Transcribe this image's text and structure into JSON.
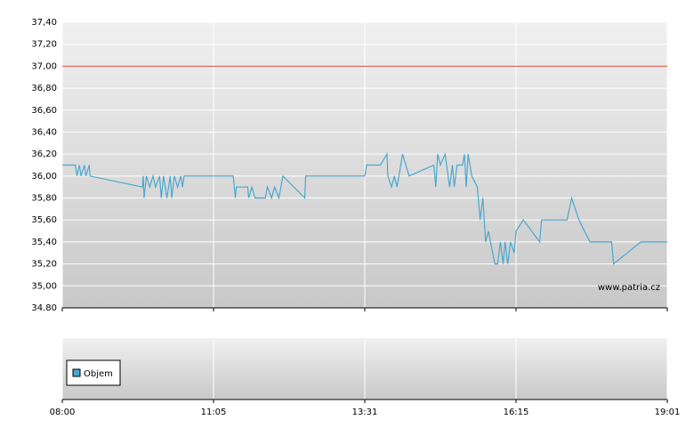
{
  "chart_data": {
    "type": "line",
    "x": [
      "08:00",
      "08:16",
      "08:18",
      "08:21",
      "08:23",
      "08:27",
      "08:29",
      "08:33",
      "08:34",
      "09:38",
      "09:39",
      "09:40",
      "09:43",
      "09:47",
      "09:51",
      "09:54",
      "09:59",
      "10:01",
      "10:04",
      "10:08",
      "10:12",
      "10:14",
      "10:17",
      "10:21",
      "10:25",
      "10:27",
      "10:29",
      "11:24",
      "11:26",
      "11:27",
      "11:38",
      "11:39",
      "11:42",
      "11:45",
      "11:55",
      "11:57",
      "12:01",
      "12:04",
      "12:08",
      "12:12",
      "12:33",
      "12:34",
      "13:31",
      "13:33",
      "13:48",
      "13:55",
      "13:56",
      "14:00",
      "14:03",
      "14:06",
      "14:12",
      "14:19",
      "14:46",
      "14:48",
      "14:50",
      "14:53",
      "14:58",
      "15:03",
      "15:06",
      "15:08",
      "15:11",
      "15:17",
      "15:19",
      "15:21",
      "15:23",
      "15:27",
      "15:33",
      "15:36",
      "15:39",
      "15:42",
      "15:45",
      "15:52",
      "15:55",
      "15:58",
      "16:01",
      "16:03",
      "16:06",
      "16:09",
      "16:13",
      "16:15",
      "16:23",
      "16:41",
      "16:43",
      "17:11",
      "17:16",
      "17:24",
      "17:36",
      "18:00",
      "18:02",
      "18:32",
      "19:01"
    ],
    "series": [
      {
        "color": "#4aa8d0",
        "values": [
          36.1,
          36.1,
          36.0,
          36.1,
          36.0,
          36.1,
          36.0,
          36.1,
          36.0,
          35.9,
          36.0,
          35.8,
          36.0,
          35.9,
          36.0,
          35.9,
          36.0,
          35.8,
          36.0,
          35.8,
          36.0,
          35.8,
          36.0,
          35.9,
          36.0,
          35.9,
          36.0,
          36.0,
          35.8,
          35.9,
          35.9,
          35.8,
          35.9,
          35.8,
          35.8,
          35.9,
          35.8,
          35.9,
          35.8,
          36.0,
          35.8,
          36.0,
          36.0,
          36.1,
          36.1,
          36.2,
          36.0,
          35.9,
          36.0,
          35.9,
          36.2,
          36.0,
          36.1,
          35.9,
          36.2,
          36.1,
          36.2,
          35.9,
          36.1,
          35.9,
          36.1,
          36.1,
          36.2,
          35.9,
          36.2,
          36.0,
          35.9,
          35.6,
          35.8,
          35.4,
          35.5,
          35.2,
          35.2,
          35.4,
          35.2,
          35.4,
          35.2,
          35.4,
          35.3,
          35.5,
          35.6,
          35.4,
          35.6,
          35.6,
          35.8,
          35.6,
          35.4,
          35.4,
          35.2,
          35.4,
          35.4
        ]
      }
    ],
    "reference_line": {
      "value": 37.0,
      "color": "#e0483c"
    },
    "ylim": [
      34.8,
      37.4
    ],
    "yticks": [
      {
        "value": 34.8,
        "label": "34.80"
      },
      {
        "value": 35.0,
        "label": "35,00"
      },
      {
        "value": 35.2,
        "label": "35,20"
      },
      {
        "value": 35.4,
        "label": "35,40"
      },
      {
        "value": 35.6,
        "label": "35,60"
      },
      {
        "value": 35.8,
        "label": "35,80"
      },
      {
        "value": 36.0,
        "label": "36,00"
      },
      {
        "value": 36.2,
        "label": "36,20"
      },
      {
        "value": 36.4,
        "label": "36,40"
      },
      {
        "value": 36.6,
        "label": "36,60"
      },
      {
        "value": 36.8,
        "label": "36,80"
      },
      {
        "value": 37.0,
        "label": "37,00"
      },
      {
        "value": 37.2,
        "label": "37,20"
      },
      {
        "value": 37.4,
        "label": "37,40"
      }
    ],
    "xlim": [
      "08:00",
      "19:01"
    ],
    "xticks": [
      "08:00",
      "11:05",
      "13:31",
      "16:15",
      "19:01"
    ],
    "grid": true,
    "watermark": "www.patria.cz",
    "volume_legend": {
      "name": "Objem",
      "color": "#4aa8d0"
    }
  }
}
